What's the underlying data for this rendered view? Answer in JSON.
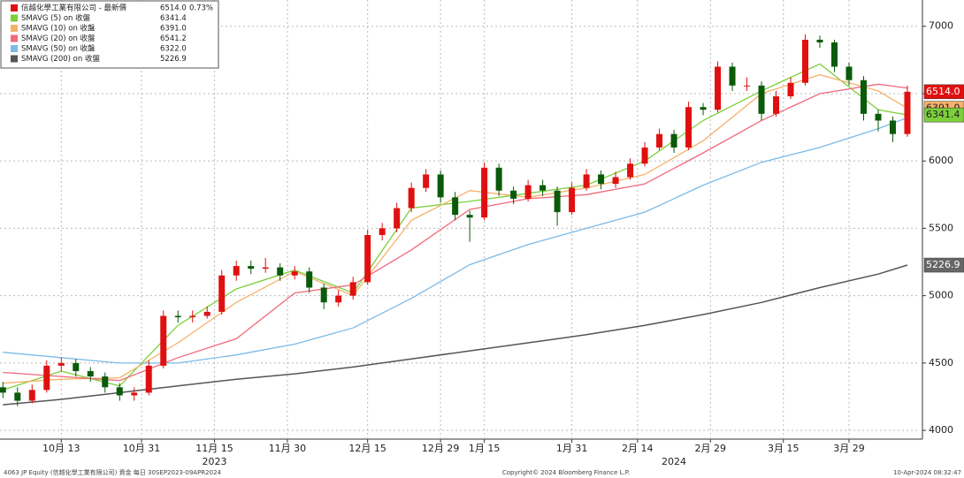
{
  "chart_data": {
    "type": "candlestick",
    "security": "信越化學工業有限公司 - 最新價",
    "price_label": "6514.0",
    "change": "0.73%",
    "up_color": "#e01010",
    "down_color": "#0a5a0a",
    "footer_left": "4063 JP Equity (信越化學工業有限公司) 資金  每日 30SEP2023-09APR2024",
    "footer_center": "Copyright© 2024 Bloomberg Finance L.P.",
    "footer_right": "10-Apr-2024 08:32:47",
    "years": [
      {
        "value": 30,
        "label": "2023"
      },
      {
        "value": 93,
        "label": "2024"
      }
    ],
    "xlim": [
      0.6,
      126.7
    ],
    "ylim": [
      3935,
      7195
    ],
    "xticks": [
      {
        "value": 9,
        "label": "10月 13"
      },
      {
        "value": 20,
        "label": "10月 31"
      },
      {
        "value": 30,
        "label": "11月 15"
      },
      {
        "value": 40,
        "label": "11月 30"
      },
      {
        "value": 51,
        "label": "12月 15"
      },
      {
        "value": 61,
        "label": "12月 29"
      },
      {
        "value": 67,
        "label": "1月 15"
      },
      {
        "value": 79,
        "label": "1月 31"
      },
      {
        "value": 88,
        "label": "2月 14"
      },
      {
        "value": 98,
        "label": "2月 29"
      },
      {
        "value": 108,
        "label": "3月 15"
      },
      {
        "value": 117,
        "label": "3月 29"
      }
    ],
    "yticks": [
      4000,
      4500,
      5000,
      5500,
      6000,
      6500,
      7000
    ],
    "grid": true,
    "x": [
      1,
      3,
      5,
      7,
      9,
      11,
      13,
      15,
      17,
      19,
      21,
      23,
      25,
      27,
      29,
      31,
      33,
      35,
      37,
      39,
      41,
      43,
      45,
      47,
      49,
      51,
      53,
      55,
      57,
      59,
      61,
      63,
      65,
      67,
      69,
      71,
      73,
      75,
      77,
      79,
      81,
      83,
      85,
      87,
      89,
      91,
      93,
      95,
      97,
      99,
      101,
      103,
      105,
      107,
      109,
      111,
      113,
      115,
      117,
      119,
      121,
      123,
      125
    ],
    "candles": [
      [
        4320,
        4360,
        4240,
        4280
      ],
      [
        4280,
        4320,
        4180,
        4220
      ],
      [
        4220,
        4340,
        4200,
        4300
      ],
      [
        4300,
        4520,
        4280,
        4480
      ],
      [
        4480,
        4540,
        4440,
        4500
      ],
      [
        4500,
        4530,
        4400,
        4440
      ],
      [
        4440,
        4470,
        4360,
        4400
      ],
      [
        4400,
        4430,
        4280,
        4320
      ],
      [
        4320,
        4350,
        4220,
        4260
      ],
      [
        4260,
        4320,
        4220,
        4280
      ],
      [
        4280,
        4520,
        4260,
        4480
      ],
      [
        4480,
        4890,
        4460,
        4850
      ],
      [
        4850,
        4890,
        4800,
        4840
      ],
      [
        4840,
        4890,
        4800,
        4850
      ],
      [
        4850,
        4920,
        4830,
        4880
      ],
      [
        4880,
        5190,
        4860,
        5150
      ],
      [
        5150,
        5260,
        5110,
        5220
      ],
      [
        5220,
        5260,
        5160,
        5200
      ],
      [
        5200,
        5280,
        5170,
        5210
      ],
      [
        5210,
        5240,
        5110,
        5150
      ],
      [
        5150,
        5220,
        5120,
        5180
      ],
      [
        5180,
        5210,
        5020,
        5060
      ],
      [
        5060,
        5090,
        4900,
        4950
      ],
      [
        4950,
        5040,
        4920,
        5000
      ],
      [
        5000,
        5140,
        4970,
        5100
      ],
      [
        5100,
        5490,
        5080,
        5450
      ],
      [
        5450,
        5540,
        5410,
        5500
      ],
      [
        5500,
        5690,
        5470,
        5650
      ],
      [
        5650,
        5840,
        5620,
        5800
      ],
      [
        5800,
        5940,
        5770,
        5900
      ],
      [
        5900,
        5930,
        5690,
        5730
      ],
      [
        5730,
        5770,
        5560,
        5600
      ],
      [
        5600,
        5630,
        5400,
        5580
      ],
      [
        5580,
        5990,
        5560,
        5950
      ],
      [
        5950,
        5980,
        5740,
        5780
      ],
      [
        5780,
        5810,
        5680,
        5720
      ],
      [
        5720,
        5860,
        5700,
        5820
      ],
      [
        5820,
        5860,
        5740,
        5780
      ],
      [
        5780,
        5810,
        5520,
        5620
      ],
      [
        5620,
        5840,
        5600,
        5800
      ],
      [
        5800,
        5940,
        5780,
        5900
      ],
      [
        5900,
        5930,
        5790,
        5830
      ],
      [
        5830,
        5920,
        5800,
        5880
      ],
      [
        5880,
        6020,
        5860,
        5980
      ],
      [
        5980,
        6140,
        5960,
        6100
      ],
      [
        6100,
        6240,
        6080,
        6200
      ],
      [
        6200,
        6230,
        6060,
        6100
      ],
      [
        6100,
        6440,
        6080,
        6400
      ],
      [
        6400,
        6430,
        6340,
        6380
      ],
      [
        6380,
        6740,
        6360,
        6700
      ],
      [
        6700,
        6730,
        6520,
        6560
      ],
      [
        6560,
        6620,
        6520,
        6560
      ],
      [
        6560,
        6590,
        6300,
        6350
      ],
      [
        6350,
        6520,
        6330,
        6480
      ],
      [
        6480,
        6620,
        6460,
        6580
      ],
      [
        6580,
        6940,
        6560,
        6900
      ],
      [
        6900,
        6930,
        6840,
        6880
      ],
      [
        6880,
        6900,
        6660,
        6700
      ],
      [
        6700,
        6730,
        6560,
        6600
      ],
      [
        6600,
        6630,
        6300,
        6350
      ],
      [
        6350,
        6380,
        6220,
        6300
      ],
      [
        6300,
        6330,
        6140,
        6200
      ],
      [
        6200,
        6560,
        6180,
        6514
      ]
    ],
    "series": [
      {
        "name": "SMAVG (5)  on 收盤",
        "color": "#7ccf3a",
        "label": "6341.4",
        "x": [
          1,
          9,
          17,
          25,
          33,
          41,
          49,
          57,
          65,
          73,
          81,
          89,
          97,
          105,
          113,
          121,
          125
        ],
        "values": [
          4300,
          4440,
          4330,
          4780,
          5050,
          5190,
          5020,
          5650,
          5700,
          5760,
          5820,
          6000,
          6300,
          6520,
          6720,
          6380,
          6341.4
        ]
      },
      {
        "name": "SMAVG (10)  on 收盤",
        "color": "#f5b26b",
        "label": "6391.0",
        "x": [
          1,
          9,
          17,
          25,
          33,
          41,
          49,
          57,
          65,
          73,
          81,
          89,
          97,
          105,
          113,
          121,
          125
        ],
        "values": [
          4350,
          4380,
          4390,
          4650,
          4950,
          5180,
          5000,
          5560,
          5780,
          5730,
          5800,
          5900,
          6150,
          6500,
          6640,
          6520,
          6391
        ]
      },
      {
        "name": "SMAVG (20)  on 收盤",
        "color": "#f06a7a",
        "label": "6541.2",
        "x": [
          1,
          9,
          17,
          25,
          33,
          41,
          49,
          57,
          65,
          73,
          81,
          89,
          97,
          105,
          113,
          121,
          125
        ],
        "values": [
          4430,
          4400,
          4370,
          4540,
          4680,
          5020,
          5080,
          5340,
          5640,
          5720,
          5750,
          5830,
          6060,
          6300,
          6500,
          6570,
          6541.2
        ]
      },
      {
        "name": "SMAVG (50)  on 收盤",
        "color": "#7bbbe8",
        "label": "6322.0",
        "x": [
          1,
          9,
          17,
          25,
          33,
          41,
          49,
          57,
          65,
          73,
          81,
          89,
          97,
          105,
          113,
          121,
          125
        ],
        "values": [
          4580,
          4540,
          4500,
          4500,
          4560,
          4640,
          4760,
          4980,
          5230,
          5380,
          5500,
          5620,
          5820,
          5990,
          6100,
          6240,
          6322
        ]
      },
      {
        "name": "SMAVG (200)  on 收盤",
        "color": "#555555",
        "label": "5226.9",
        "x": [
          1,
          9,
          17,
          25,
          33,
          41,
          49,
          57,
          65,
          73,
          81,
          89,
          97,
          105,
          113,
          121,
          125
        ],
        "values": [
          4190,
          4230,
          4280,
          4330,
          4380,
          4420,
          4470,
          4530,
          4590,
          4650,
          4710,
          4780,
          4860,
          4950,
          5060,
          5160,
          5226.9
        ]
      }
    ]
  }
}
